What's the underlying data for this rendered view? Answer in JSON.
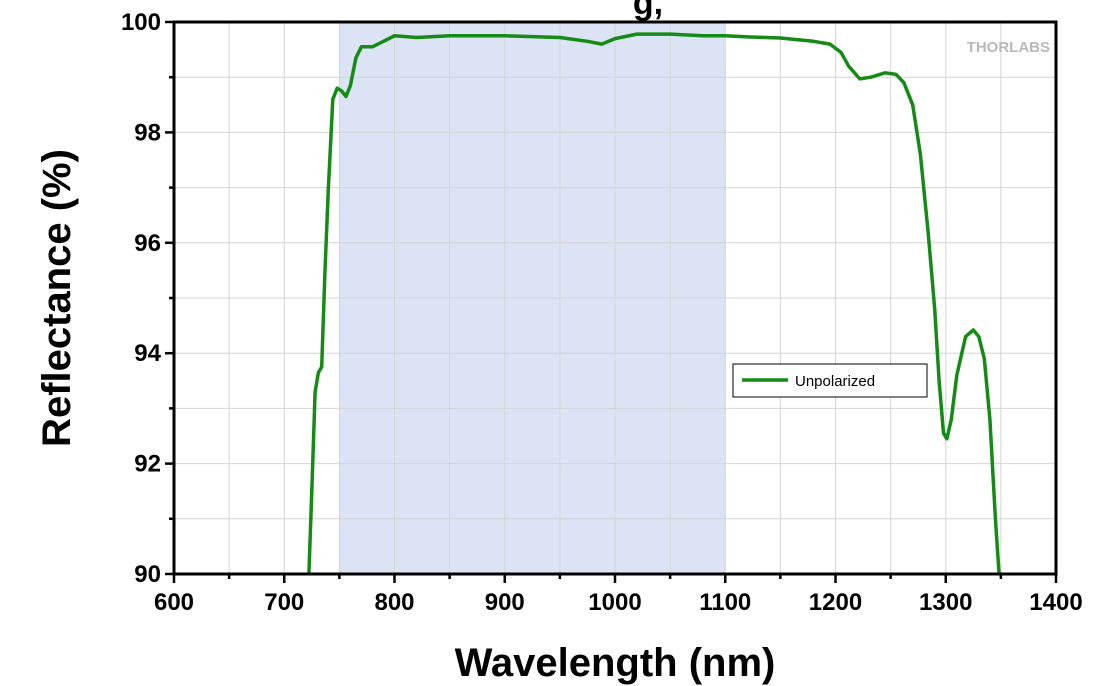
{
  "chart_data": {
    "type": "line",
    "title_fragment": "g,",
    "xlabel": "Wavelength (nm)",
    "ylabel": "Reflectance (%)",
    "xlim": [
      600,
      1400
    ],
    "ylim": [
      90,
      100
    ],
    "x_ticks": [
      600,
      700,
      800,
      900,
      1000,
      1100,
      1200,
      1300,
      1400
    ],
    "y_ticks": [
      90,
      92,
      94,
      96,
      98,
      100
    ],
    "grid": true,
    "legend_position": "center-right",
    "watermark": "THORLABS",
    "highlight_band": {
      "x_range": [
        750,
        1100
      ],
      "color": "#dbe3f4"
    },
    "series": [
      {
        "name": "Unpolarized",
        "color": "#158a15",
        "points": [
          [
            722,
            89.8
          ],
          [
            725,
            91.5
          ],
          [
            728,
            93.3
          ],
          [
            731,
            93.65
          ],
          [
            734,
            93.75
          ],
          [
            737,
            95.5
          ],
          [
            740,
            97.0
          ],
          [
            744,
            98.6
          ],
          [
            748,
            98.8
          ],
          [
            752,
            98.75
          ],
          [
            756,
            98.65
          ],
          [
            760,
            98.85
          ],
          [
            765,
            99.35
          ],
          [
            770,
            99.55
          ],
          [
            780,
            99.55
          ],
          [
            790,
            99.65
          ],
          [
            800,
            99.75
          ],
          [
            820,
            99.72
          ],
          [
            850,
            99.75
          ],
          [
            900,
            99.75
          ],
          [
            950,
            99.72
          ],
          [
            975,
            99.65
          ],
          [
            988,
            99.6
          ],
          [
            1000,
            99.7
          ],
          [
            1020,
            99.78
          ],
          [
            1050,
            99.78
          ],
          [
            1080,
            99.75
          ],
          [
            1100,
            99.75
          ],
          [
            1120,
            99.73
          ],
          [
            1150,
            99.71
          ],
          [
            1180,
            99.65
          ],
          [
            1195,
            99.6
          ],
          [
            1205,
            99.45
          ],
          [
            1212,
            99.2
          ],
          [
            1222,
            98.97
          ],
          [
            1232,
            99.0
          ],
          [
            1245,
            99.08
          ],
          [
            1255,
            99.05
          ],
          [
            1262,
            98.9
          ],
          [
            1270,
            98.5
          ],
          [
            1277,
            97.6
          ],
          [
            1284,
            96.2
          ],
          [
            1290,
            94.8
          ],
          [
            1294,
            93.5
          ],
          [
            1298,
            92.55
          ],
          [
            1301,
            92.45
          ],
          [
            1305,
            92.8
          ],
          [
            1310,
            93.6
          ],
          [
            1318,
            94.3
          ],
          [
            1325,
            94.42
          ],
          [
            1330,
            94.3
          ],
          [
            1335,
            93.9
          ],
          [
            1340,
            92.8
          ],
          [
            1345,
            91.0
          ],
          [
            1349,
            89.8
          ]
        ]
      }
    ]
  }
}
